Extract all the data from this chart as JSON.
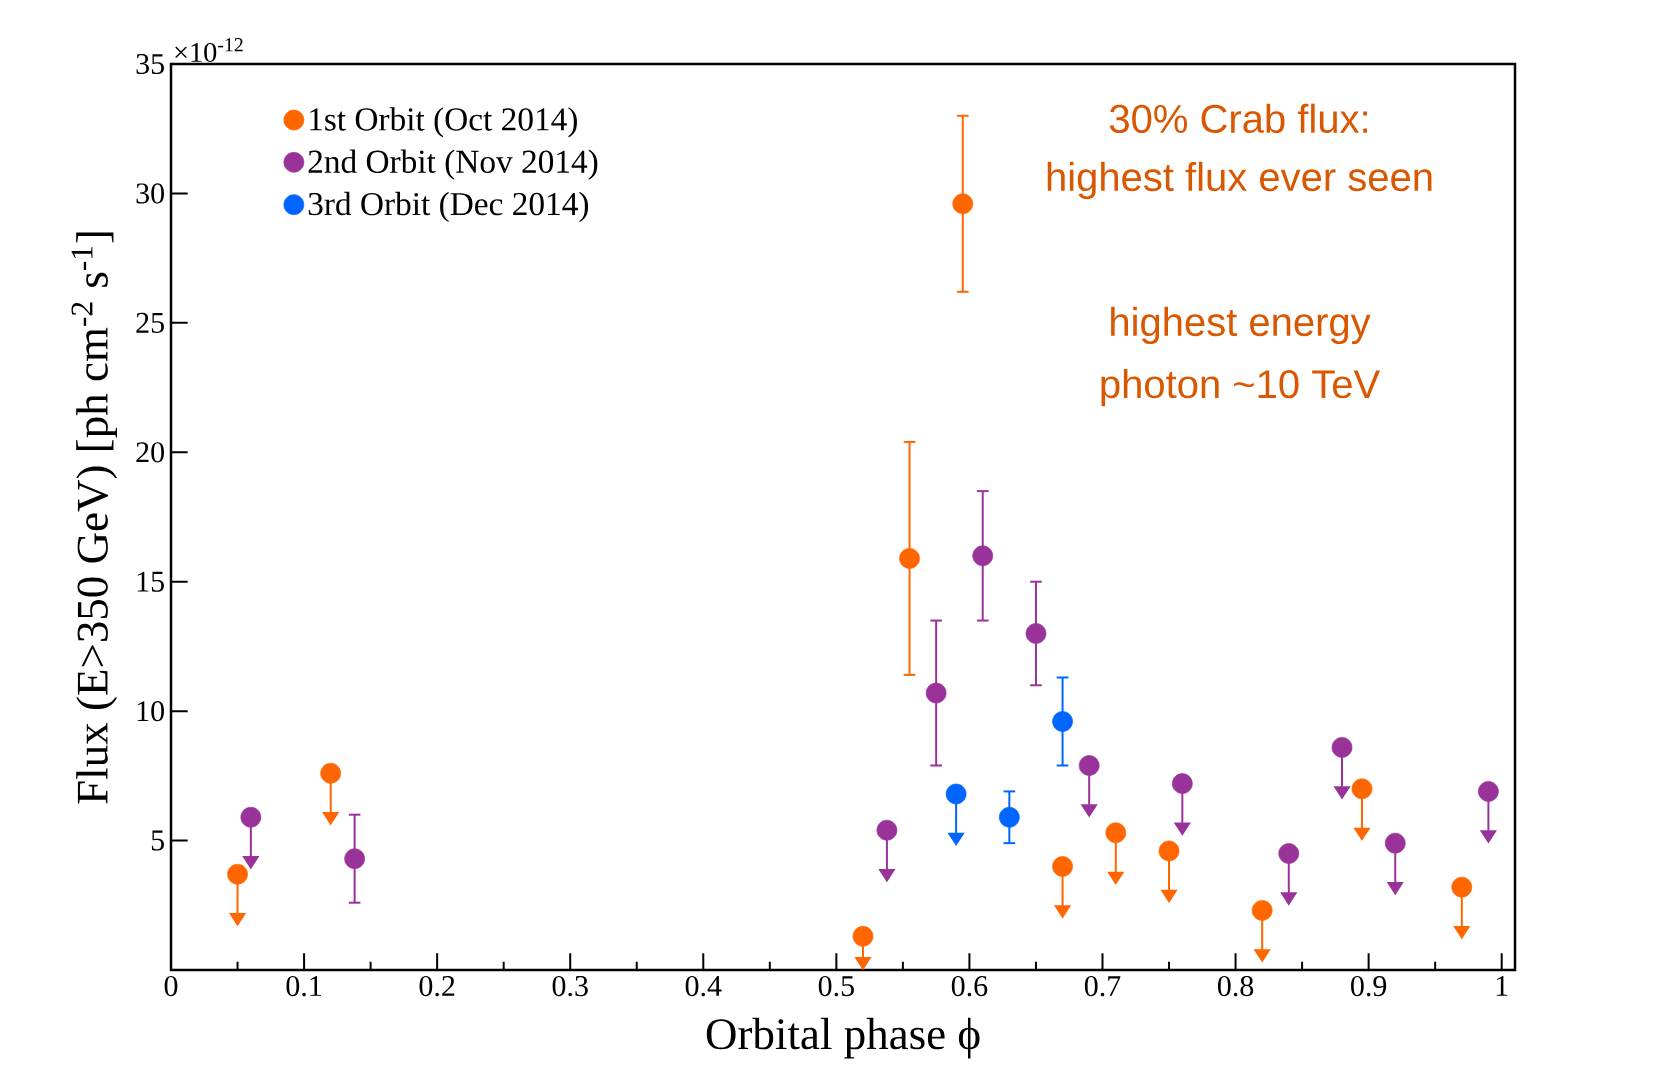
{
  "chart_data": {
    "type": "scatter",
    "xlabel": "Orbital phase ϕ",
    "ylabel": "Flux (E>350 GeV) [ph cm$^{-2}$ s$^{-1}$]",
    "annotations": [
      "×10$^{-12}$",
      "30% Crab flux:",
      "highest flux ever seen",
      "highest energy",
      "photon ~10 TeV"
    ],
    "xlim": [
      0,
      1.01
    ],
    "ylim": [
      0,
      35
    ],
    "xticks": [
      0,
      0.1,
      0.2,
      0.3,
      0.4,
      0.5,
      0.6,
      0.7,
      0.8,
      0.9,
      1
    ],
    "yticks": [
      5,
      10,
      15,
      20,
      25,
      30,
      35
    ],
    "marker": "circle",
    "legend": "top left",
    "series": [
      {
        "name": "1st Orbit (Oct 2014)",
        "color": "#ff6600",
        "x": [
          0.05,
          0.12,
          0.52,
          0.555,
          0.595,
          0.67,
          0.71,
          0.75,
          0.82,
          0.895,
          0.97
        ],
        "values": [
          3.7,
          7.6,
          1.3,
          15.9,
          29.6,
          4.0,
          5.3,
          4.6,
          2.3,
          7.0,
          3.2
        ],
        "errors": [
          [
            2.2,
            3.7
          ],
          [
            6.1,
            7.6
          ],
          [
            0.5,
            1.3
          ],
          [
            11.4,
            20.4
          ],
          [
            26.2,
            33.0
          ],
          [
            2.5,
            4.0
          ],
          [
            3.8,
            5.3
          ],
          [
            3.1,
            4.6
          ],
          [
            0.8,
            2.3
          ],
          [
            5.5,
            7.0
          ],
          [
            1.7,
            3.2
          ]
        ]
      },
      {
        "name": "2nd Orbit (Nov 2014)",
        "color": "#993399",
        "x": [
          0.06,
          0.138,
          0.538,
          0.575,
          0.61,
          0.65,
          0.69,
          0.76,
          0.84,
          0.88,
          0.92,
          0.99
        ],
        "values": [
          5.9,
          4.3,
          5.4,
          10.7,
          16.0,
          13.0,
          7.9,
          7.2,
          4.5,
          8.6,
          4.9,
          6.9
        ],
        "errors": [
          [
            4.4,
            5.9
          ],
          [
            2.6,
            6.0
          ],
          [
            3.9,
            5.4
          ],
          [
            7.9,
            13.5
          ],
          [
            13.5,
            18.5
          ],
          [
            11.0,
            15.0
          ],
          [
            6.4,
            7.9
          ],
          [
            5.7,
            7.2
          ],
          [
            3.0,
            4.5
          ],
          [
            7.1,
            8.6
          ],
          [
            3.4,
            4.9
          ],
          [
            5.4,
            6.9
          ]
        ]
      },
      {
        "name": "3rd Orbit (Dec 2014)",
        "color": "#0066ff",
        "x": [
          0.59,
          0.63,
          0.67
        ],
        "values": [
          6.8,
          5.9,
          9.6
        ],
        "errors": [
          [
            5.3,
            6.8
          ],
          [
            4.9,
            6.9
          ],
          [
            7.9,
            11.3
          ]
        ]
      }
    ]
  }
}
